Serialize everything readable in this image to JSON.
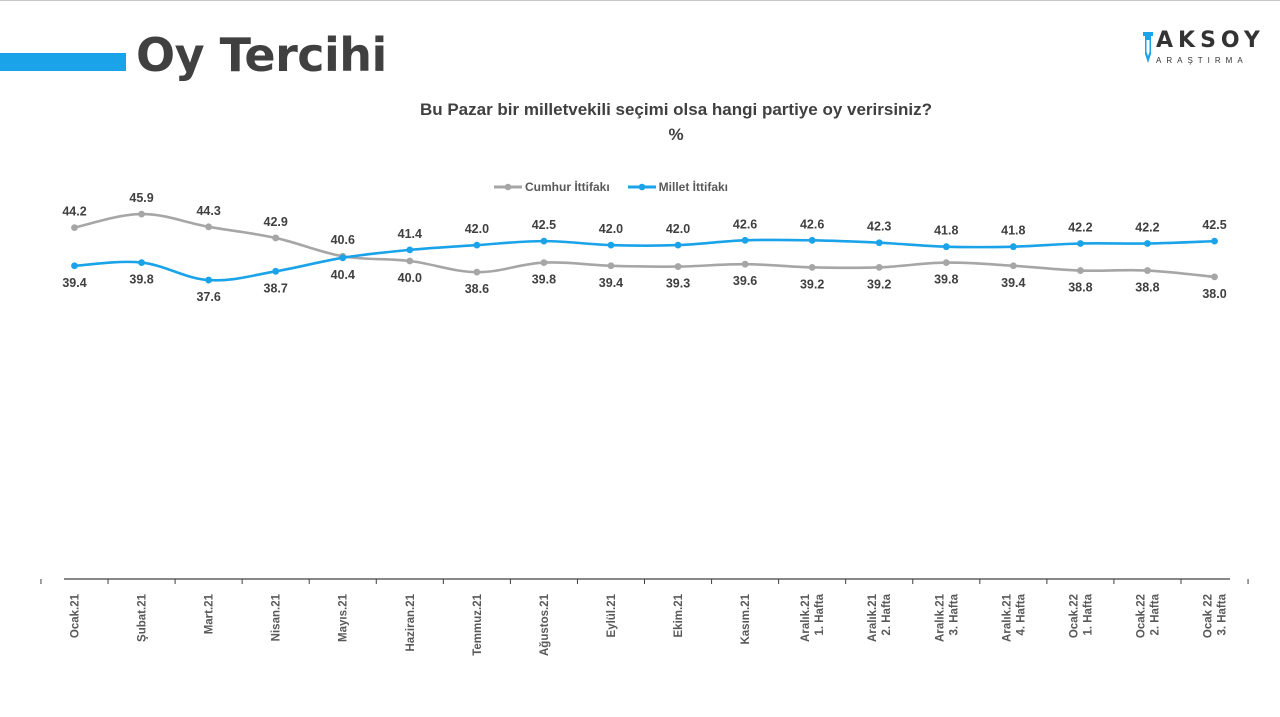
{
  "page": {
    "title": "Oy Tercihi",
    "accent_color": "#1aa3e8"
  },
  "logo": {
    "word": "AKSOY",
    "sub": "ARAŞTIRMA",
    "icon": "pen-nib-icon"
  },
  "chart_data": {
    "type": "line",
    "title": "Bu Pazar bir milletvekili seçimi olsa hangi partiye oy verirsiniz?",
    "subtitle": "%",
    "xlabel": "",
    "ylabel": "",
    "ylim": [
      0,
      60
    ],
    "grid": false,
    "legend_position": "top-center",
    "categories": [
      [
        "Ocak.21"
      ],
      [
        "Şubat.21"
      ],
      [
        "Mart.21"
      ],
      [
        "Nisan.21"
      ],
      [
        "Mayıs.21"
      ],
      [
        "Haziran.21"
      ],
      [
        "Temmuz.21"
      ],
      [
        "Ağustos.21"
      ],
      [
        "Eylül.21"
      ],
      [
        "Ekim.21"
      ],
      [
        "Kasım.21"
      ],
      [
        "Aralık.21",
        "1. Hafta"
      ],
      [
        "Aralık.21",
        "2. Hafta"
      ],
      [
        "Aralık.21",
        "3. Hafta"
      ],
      [
        "Aralık.21",
        "4. Hafta"
      ],
      [
        "Ocak.22",
        "1. Hafta"
      ],
      [
        "Ocak.22",
        "2. Hafta"
      ],
      [
        "Ocak 22",
        "3. Hafta"
      ]
    ],
    "series": [
      {
        "name": "Cumhur İttifakı",
        "color": "#a6a6a6",
        "values": [
          44.2,
          45.9,
          44.3,
          42.9,
          40.6,
          40.0,
          38.6,
          39.8,
          39.4,
          39.3,
          39.6,
          39.2,
          39.2,
          39.8,
          39.4,
          38.8,
          38.8,
          38.0
        ]
      },
      {
        "name": "Millet İttifakı",
        "color": "#1aa3e8",
        "values": [
          39.4,
          39.8,
          37.6,
          38.7,
          40.4,
          41.4,
          42.0,
          42.5,
          42.0,
          42.0,
          42.6,
          42.6,
          42.3,
          41.8,
          41.8,
          42.2,
          42.2,
          42.5
        ]
      }
    ]
  }
}
